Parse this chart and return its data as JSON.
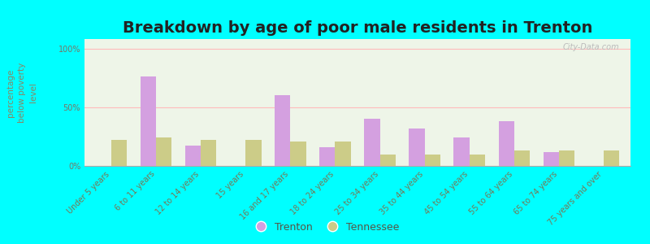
{
  "categories": [
    "Under 5 years",
    "6 to 11 years",
    "12 to 14 years",
    "15 years",
    "16 and 17 years",
    "18 to 24 years",
    "25 to 34 years",
    "35 to 44 years",
    "45 to 54 years",
    "55 to 64 years",
    "65 to 74 years",
    "75 years and over"
  ],
  "trenton": [
    0,
    76,
    17,
    0,
    60,
    16,
    40,
    32,
    24,
    38,
    12,
    0
  ],
  "tennessee": [
    22,
    24,
    22,
    22,
    21,
    21,
    10,
    10,
    10,
    13,
    13,
    13
  ],
  "trenton_color": "#d4a0e0",
  "tennessee_color": "#cccc88",
  "title": "Breakdown by age of poor male residents in Trenton",
  "ylabel": "percentage\nbelow poverty\nlevel",
  "yticks": [
    0,
    50,
    100
  ],
  "ytick_labels": [
    "0%",
    "50%",
    "100%"
  ],
  "background_color": "#00ffff",
  "plot_bg_color": "#eef5e8",
  "bar_width": 0.35,
  "legend_trenton": "Trenton",
  "legend_tennessee": "Tennessee",
  "title_fontsize": 14,
  "axis_label_fontsize": 7.5,
  "tick_fontsize": 7,
  "legend_fontsize": 9,
  "watermark": "City-Data.com"
}
